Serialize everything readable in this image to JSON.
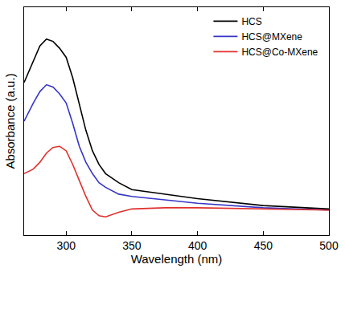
{
  "chart_data": {
    "type": "line",
    "x_label": "Wavelength (nm)",
    "y_label": "Absorbance (a.u.)",
    "x": [
      268,
      275,
      280,
      285,
      290,
      295,
      300,
      305,
      310,
      315,
      320,
      325,
      330,
      340,
      350,
      375,
      400,
      450,
      500
    ],
    "series": [
      {
        "name": "HCS",
        "color": "#000000",
        "values": [
          0.67,
          0.76,
          0.83,
          0.86,
          0.85,
          0.82,
          0.78,
          0.69,
          0.57,
          0.46,
          0.37,
          0.31,
          0.27,
          0.23,
          0.2,
          0.18,
          0.16,
          0.13,
          0.115
        ]
      },
      {
        "name": "HCS@MXene",
        "color": "#3535c8",
        "values": [
          0.5,
          0.58,
          0.63,
          0.66,
          0.65,
          0.62,
          0.58,
          0.49,
          0.39,
          0.32,
          0.27,
          0.23,
          0.21,
          0.18,
          0.17,
          0.155,
          0.14,
          0.12,
          0.11
        ]
      },
      {
        "name": "HCS@Co-MXene",
        "color": "#e0302c",
        "values": [
          0.27,
          0.29,
          0.32,
          0.36,
          0.385,
          0.39,
          0.37,
          0.31,
          0.24,
          0.17,
          0.11,
          0.085,
          0.08,
          0.1,
          0.115,
          0.12,
          0.12,
          0.115,
          0.11
        ]
      }
    ],
    "xlim": [
      268,
      500
    ],
    "xticks": [
      300,
      350,
      400,
      450,
      500
    ],
    "ylim": [
      0,
      1
    ],
    "tick_labels": "x",
    "grid": false,
    "legend": "upper right"
  }
}
